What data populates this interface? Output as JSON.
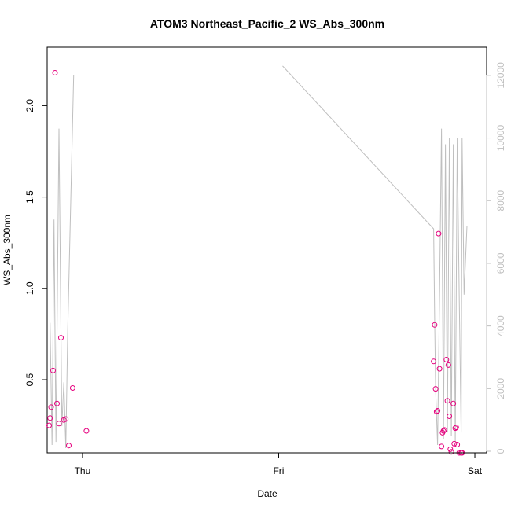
{
  "chart_data": {
    "type": "scatter",
    "title": "ATOM3 Northeast_Pacific_2 WS_Abs_300nm",
    "xlabel": "Date",
    "ylabel": "WS_Abs_300nm",
    "x_ticks": [
      "Thu",
      "Fri",
      "Sat"
    ],
    "y_ticks": [
      "0.5",
      "1.0",
      "1.5",
      "2.0"
    ],
    "y2_ticks": [
      "0",
      "2000",
      "4000",
      "6000",
      "8000",
      "10000",
      "12000"
    ],
    "ylim": [
      0.1,
      2.32
    ],
    "y2lim": [
      -50,
      12900
    ],
    "xlim_days": [
      -0.18,
      2.06
    ],
    "grid": false,
    "colors": {
      "points": "#e6007e",
      "line": "#bfbfbf",
      "right_axis": "#bfbfbf"
    },
    "series": [
      {
        "type": "scatter",
        "axis": "left",
        "x": [
          -0.17,
          -0.165,
          -0.16,
          -0.15,
          -0.14,
          -0.13,
          -0.12,
          -0.11,
          -0.095,
          -0.085,
          -0.07,
          -0.05,
          0.02,
          1.79,
          1.795,
          1.8,
          1.805,
          1.81,
          1.815,
          1.82,
          1.83,
          1.835,
          1.84,
          1.845,
          1.855,
          1.86,
          1.865,
          1.87,
          1.875,
          1.88,
          1.89,
          1.895,
          1.9,
          1.905,
          1.91,
          1.92,
          1.93,
          1.935
        ],
        "y": [
          0.25,
          0.29,
          0.35,
          0.55,
          2.18,
          0.37,
          0.26,
          0.73,
          0.28,
          0.285,
          0.14,
          0.455,
          0.22,
          0.6,
          0.8,
          0.45,
          0.325,
          0.33,
          1.3,
          0.56,
          0.135,
          0.21,
          0.22,
          0.225,
          0.61,
          0.385,
          0.58,
          0.3,
          0.12,
          0.105,
          0.37,
          0.15,
          0.235,
          0.24,
          0.145,
          0.1,
          0.1,
          0.1
        ]
      },
      {
        "type": "line",
        "axis": "right",
        "segments": [
          {
            "x": [
              -0.165,
              -0.155,
              -0.145,
              -0.135,
              -0.12,
              -0.105,
              -0.095,
              -0.085,
              -0.075,
              -0.045
            ],
            "y": [
              4100,
              200,
              7400,
              300,
              10300,
              800,
              2200,
              100,
              3900,
              12000
            ]
          },
          {
            "x": [
              1.02,
              1.79,
              1.795,
              1.8,
              1.81,
              1.82,
              1.83,
              1.84,
              1.85,
              1.86,
              1.87,
              1.88,
              1.89,
              1.9,
              1.91,
              1.92,
              1.93,
              1.935,
              1.945,
              1.96
            ],
            "y": [
              12300,
              7100,
              4200,
              2000,
              200,
              5000,
              10300,
              400,
              9800,
              600,
              10000,
              500,
              9800,
              300,
              10000,
              5000,
              600,
              10000,
              5000,
              7200
            ]
          }
        ]
      }
    ]
  }
}
